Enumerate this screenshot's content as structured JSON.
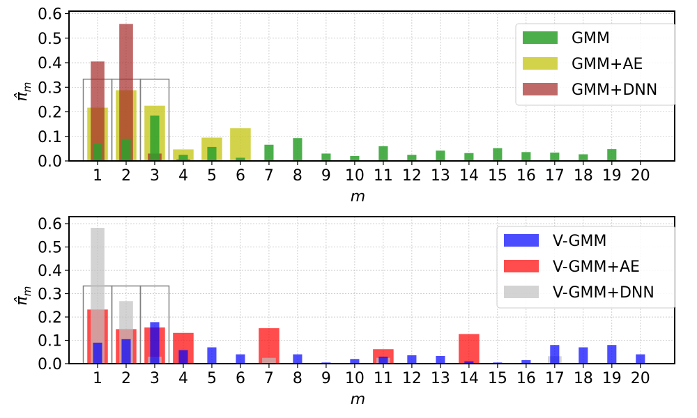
{
  "chart_data": [
    {
      "type": "bar",
      "xlabel": "m",
      "ylabel": "π̂m",
      "ylabel_main": "π̂",
      "ylabel_sub": "m",
      "categories": [
        "1",
        "2",
        "3",
        "4",
        "5",
        "6",
        "7",
        "8",
        "9",
        "10",
        "11",
        "12",
        "13",
        "14",
        "15",
        "16",
        "17",
        "18",
        "19",
        "20"
      ],
      "ylim": [
        0,
        0.61
      ],
      "yticks": [
        "0.0",
        "0.1",
        "0.2",
        "0.3",
        "0.4",
        "0.5",
        "0.6"
      ],
      "grid": true,
      "legend_position": "top-right",
      "reference_boxes": {
        "categories": [
          1,
          2,
          3
        ],
        "value": 0.333,
        "color": "#808080"
      },
      "series": [
        {
          "name": "GMM",
          "color": "#2ca02c",
          "opacity": 0.85,
          "width": 0.32,
          "values": [
            0.07,
            0.09,
            0.185,
            0.025,
            0.057,
            0.013,
            0.066,
            0.093,
            0.03,
            0.02,
            0.06,
            0.025,
            0.042,
            0.032,
            0.052,
            0.036,
            0.034,
            0.027,
            0.048,
            0.0
          ]
        },
        {
          "name": "GMM+AE",
          "color": "#c8c81e",
          "opacity": 0.8,
          "width": 0.72,
          "values": [
            0.217,
            0.288,
            0.225,
            0.047,
            0.095,
            0.133,
            0,
            0,
            0,
            0,
            0,
            0,
            0,
            0,
            0,
            0,
            0,
            0,
            0,
            0
          ]
        },
        {
          "name": "GMM+DNN",
          "color": "#a52a2a",
          "opacity": 0.7,
          "width": 0.48,
          "values": [
            0.405,
            0.558,
            0.03,
            0.006,
            0,
            0,
            0,
            0,
            0,
            0,
            0,
            0,
            0,
            0,
            0,
            0,
            0,
            0,
            0,
            0
          ]
        }
      ]
    },
    {
      "type": "bar",
      "xlabel": "m",
      "ylabel": "π̂m",
      "ylabel_main": "π̂",
      "ylabel_sub": "m",
      "categories": [
        "1",
        "2",
        "3",
        "4",
        "5",
        "6",
        "7",
        "8",
        "9",
        "10",
        "11",
        "12",
        "13",
        "14",
        "15",
        "16",
        "17",
        "18",
        "19",
        "20"
      ],
      "ylim": [
        0,
        0.63
      ],
      "yticks": [
        "0.0",
        "0.1",
        "0.2",
        "0.3",
        "0.4",
        "0.5",
        "0.6"
      ],
      "grid": true,
      "legend_position": "top-right",
      "reference_boxes": {
        "categories": [
          1,
          2,
          3
        ],
        "value": 0.333,
        "color": "#808080"
      },
      "series": [
        {
          "name": "V-GMM",
          "color": "#0000ff",
          "opacity": 0.7,
          "width": 0.32,
          "values": [
            0.09,
            0.105,
            0.178,
            0.058,
            0.07,
            0.04,
            0.0,
            0.04,
            0.005,
            0.02,
            0.03,
            0.036,
            0.033,
            0.01,
            0.005,
            0.015,
            0.08,
            0.07,
            0.08,
            0.04
          ]
        },
        {
          "name": "V-GMM+AE",
          "color": "#ff0000",
          "opacity": 0.7,
          "width": 0.72,
          "values": [
            0.232,
            0.148,
            0.155,
            0.132,
            0,
            0,
            0.152,
            0,
            0,
            0,
            0.062,
            0,
            0,
            0.127,
            0,
            0,
            0,
            0,
            0,
            0
          ]
        },
        {
          "name": "V-GMM+DNN",
          "color": "#c0c0c0",
          "opacity": 0.7,
          "width": 0.48,
          "values": [
            0.582,
            0.268,
            0.03,
            0,
            0,
            0,
            0.025,
            0,
            0,
            0,
            0.025,
            0,
            0,
            0,
            0,
            0,
            0.032,
            0,
            0,
            0
          ]
        }
      ]
    }
  ]
}
